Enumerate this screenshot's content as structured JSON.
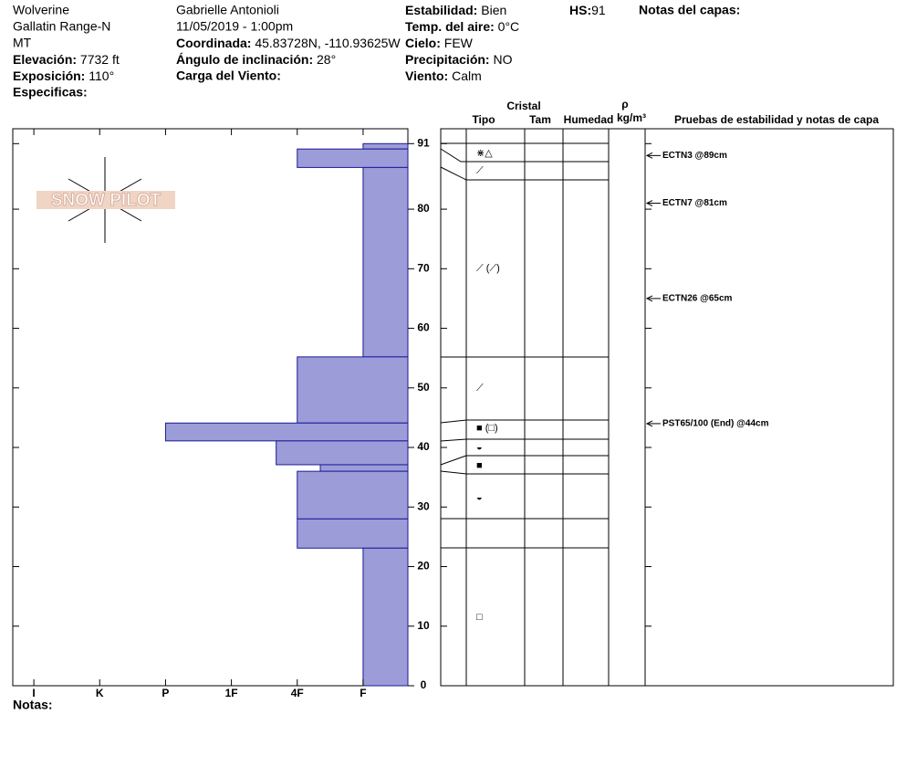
{
  "header": {
    "location": [
      "Wolverine",
      "Gallatin Range-N",
      "MT"
    ],
    "elevation": {
      "label": "Elevación:",
      "value": "7732 ft"
    },
    "aspect": {
      "label": "Exposición:",
      "value": "110°"
    },
    "specifics": {
      "label": "Especificas:"
    },
    "observer": "Gabrielle Antonioli",
    "datetime": "11/05/2019 - 1:00pm",
    "coordinates": {
      "label": "Coordinada:",
      "value": "45.83728N, -110.93625W"
    },
    "slope": {
      "label": "Ángulo de inclinación:",
      "value": "28°"
    },
    "wind_load": {
      "label": "Carga del Viento:"
    },
    "stability": {
      "label": "Estabilidad:",
      "value": "Bien"
    },
    "air_temp": {
      "label": "Temp. del aire:",
      "value": "0°C"
    },
    "sky": {
      "label": "Cielo:",
      "value": "FEW"
    },
    "precip": {
      "label": "Precipitación:",
      "value": "NO"
    },
    "wind": {
      "label": "Viento:",
      "value": "Calm"
    },
    "hs": {
      "label": "HS:",
      "value": "91"
    },
    "layer_notes": {
      "label": "Notas del capas:"
    }
  },
  "logo": "SNOW PILOT",
  "chart_data": {
    "type": "bar",
    "color": "#9c9cd8",
    "depth_top": [
      91,
      90.1,
      87,
      55.2,
      44.1,
      41.1,
      37.1,
      36,
      28,
      23.1
    ],
    "depth_bottom": [
      90.1,
      87,
      55.2,
      44.1,
      41.1,
      37.1,
      36,
      28,
      23.1,
      0
    ],
    "values": [
      1,
      2,
      1,
      2,
      4,
      2.32,
      1.65,
      2,
      2,
      1
    ],
    "ylim": [
      0,
      93.5
    ],
    "yticks": [
      0,
      10,
      20,
      30,
      40,
      50,
      60,
      70,
      80,
      91
    ],
    "xlim": [
      6.32,
      0.32
    ],
    "xticks": [
      {
        "value": 6,
        "label": "I"
      },
      {
        "value": 5,
        "label": "K"
      },
      {
        "value": 4,
        "label": "P"
      },
      {
        "value": 3,
        "label": "1F"
      },
      {
        "value": 2,
        "label": "4F"
      },
      {
        "value": 1,
        "label": "F"
      }
    ]
  },
  "columns": {
    "crystal": "Cristal",
    "type": "Tipo",
    "size": "Tam",
    "moisture": "Humedad",
    "rho": "ρ",
    "density_unit": "kg/m³",
    "tests": "Pruebas de estabilidad y notas de capa"
  },
  "grains": [
    "⋇△",
    "⟋",
    "⟋ (⟋)",
    "⟋",
    "■ (□)",
    "◒",
    "■",
    "◒",
    "□"
  ],
  "tests": [
    {
      "label": "ECTN3 @89cm",
      "depth": 89
    },
    {
      "label": "ECTN7 @81cm",
      "depth": 81
    },
    {
      "label": "ECTN26 @65cm",
      "depth": 65
    },
    {
      "label": "PST65/100 (End) @44cm",
      "depth": 44
    }
  ],
  "notes": {
    "label": "Notas:"
  }
}
